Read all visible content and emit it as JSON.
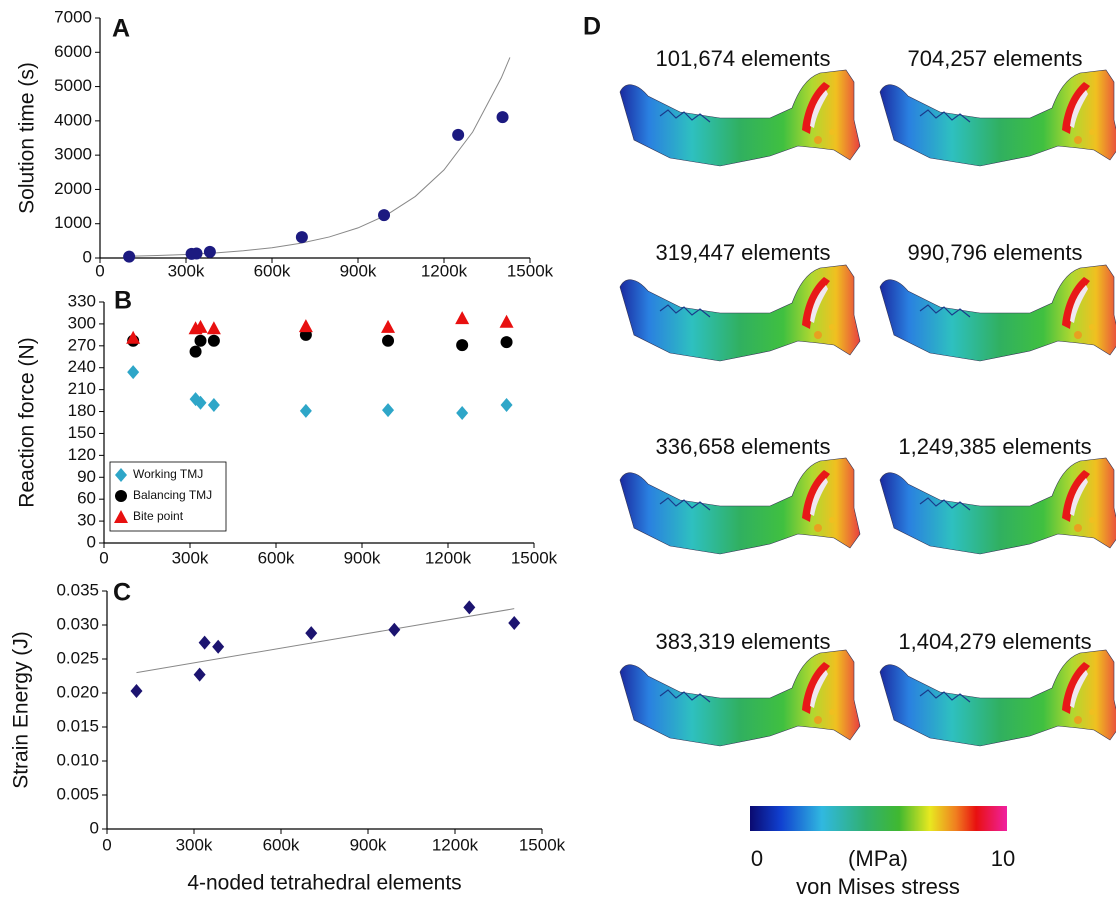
{
  "chart_data": [
    {
      "type": "scatter",
      "panel": "A",
      "ylabel": "Solution time (s)",
      "x": [
        101674,
        319447,
        336658,
        383319,
        704257,
        990796,
        1249385,
        1404279
      ],
      "series": [
        {
          "color": "#1c1a80",
          "marker": "circle",
          "values": [
            40,
            120,
            130,
            180,
            610,
            1250,
            3590,
            4110
          ]
        }
      ],
      "trendline": {
        "color": "#888888",
        "x": [
          100000,
          200000,
          300000,
          400000,
          500000,
          600000,
          700000,
          800000,
          900000,
          1000000,
          1100000,
          1200000,
          1300000,
          1400000,
          1430000
        ],
        "values": [
          50,
          72,
          102,
          147,
          210,
          300,
          429,
          614,
          878,
          1256,
          1796,
          2570,
          3675,
          5257,
          5850
        ]
      },
      "xlim": [
        0,
        1500000
      ],
      "xticks": [
        0,
        {
          "value": 300000,
          "label": "300k"
        },
        {
          "value": 600000,
          "label": "600k"
        },
        {
          "value": 900000,
          "label": "900k"
        },
        {
          "value": 1200000,
          "label": "1200k"
        },
        {
          "value": 1500000,
          "label": "1500k"
        }
      ],
      "ylim": [
        0,
        7000
      ],
      "yticks": [
        0,
        1000,
        2000,
        3000,
        4000,
        5000,
        6000,
        7000
      ]
    },
    {
      "type": "scatter",
      "panel": "B",
      "ylabel": "Reaction force (N)",
      "x": [
        101674,
        319447,
        336658,
        383319,
        704257,
        990796,
        1249385,
        1404279
      ],
      "series": [
        {
          "name": "Working TMJ",
          "color": "#2ea6c8",
          "marker": "diamond",
          "values": [
            234,
            197,
            192,
            189,
            181,
            182,
            178,
            189
          ]
        },
        {
          "name": "Balancing TMJ",
          "color": "#000000",
          "marker": "circle",
          "values": [
            277,
            262,
            277,
            277,
            285,
            277,
            271,
            275
          ]
        },
        {
          "name": "Bite point",
          "color": "#e81010",
          "marker": "triangle",
          "values": [
            281,
            294,
            296,
            294,
            297,
            296,
            308,
            303
          ]
        }
      ],
      "legend": "lower left",
      "xlim": [
        0,
        1500000
      ],
      "xticks": [
        0,
        {
          "value": 300000,
          "label": "300k"
        },
        {
          "value": 600000,
          "label": "600k"
        },
        {
          "value": 900000,
          "label": "900k"
        },
        {
          "value": 1200000,
          "label": "1200k"
        },
        {
          "value": 1500000,
          "label": "1500k"
        }
      ],
      "ylim": [
        0,
        330
      ],
      "yticks": [
        0,
        30,
        60,
        90,
        120,
        150,
        180,
        210,
        240,
        270,
        300,
        330
      ]
    },
    {
      "type": "scatter",
      "panel": "C",
      "ylabel": "Strain Energy (J)",
      "xlabel": "4-noded tetrahedral elements",
      "x": [
        101674,
        319447,
        336658,
        383319,
        704257,
        990796,
        1249385,
        1404279
      ],
      "series": [
        {
          "color": "#1c1470",
          "marker": "diamond",
          "values": [
            0.0203,
            0.0227,
            0.0274,
            0.0268,
            0.0288,
            0.0293,
            0.0326,
            0.0303
          ]
        }
      ],
      "trendline": {
        "color": "#888888",
        "x": [
          101674,
          1404279
        ],
        "values": [
          0.023,
          0.0324
        ]
      },
      "xlim": [
        0,
        1500000
      ],
      "xticks": [
        0,
        {
          "value": 300000,
          "label": "300k"
        },
        {
          "value": 600000,
          "label": "600k"
        },
        {
          "value": 900000,
          "label": "900k"
        },
        {
          "value": 1200000,
          "label": "1200k"
        },
        {
          "value": 1500000,
          "label": "1500k"
        }
      ],
      "ylim": [
        0,
        0.035
      ],
      "yticks": [
        0,
        0.005,
        {
          "value": 0.01,
          "label": "0.010"
        },
        0.015,
        {
          "value": 0.02,
          "label": "0.020"
        },
        0.025,
        {
          "value": 0.03,
          "label": "0.030"
        },
        0.035
      ]
    }
  ],
  "panel_d": {
    "panel": "D",
    "labels": [
      "101,674 elements",
      "704,257 elements",
      "319,447 elements",
      "990,796 elements",
      "336,658 elements",
      "1,249,385 elements",
      "383,319 elements",
      "1,404,279 elements"
    ],
    "colorbar": {
      "ticks": [
        0,
        10
      ],
      "unit": "(MPa)",
      "title": "von Mises stress"
    }
  }
}
